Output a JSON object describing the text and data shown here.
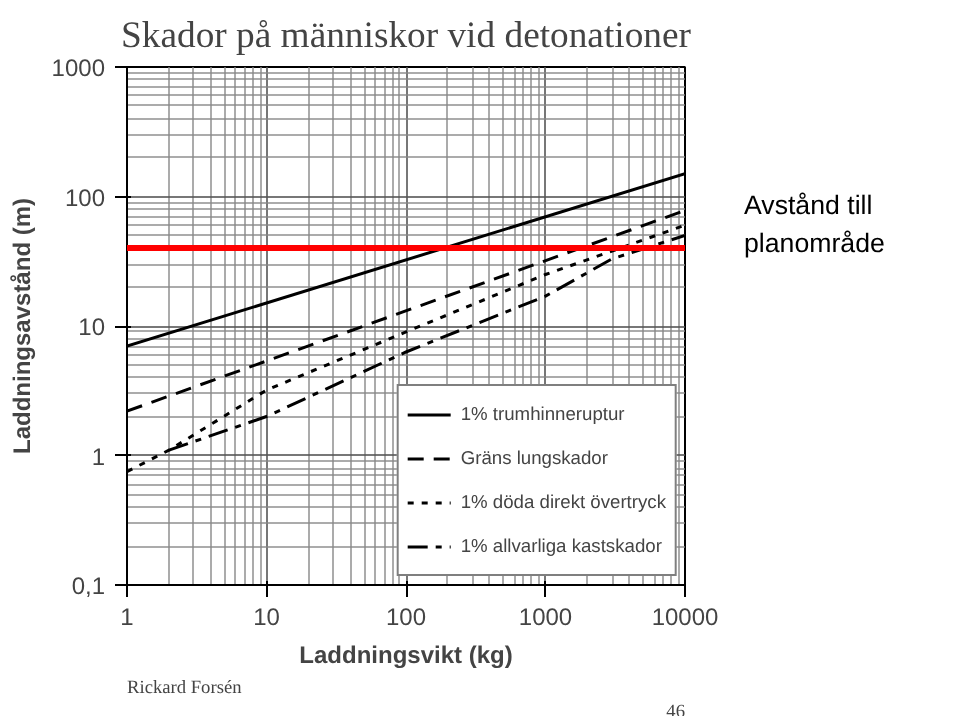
{
  "chart_data": {
    "type": "line",
    "title": "Skador på människor vid detonationer",
    "xlabel": "Laddningsvikt (kg)",
    "ylabel": "Laddningsavstånd (m)",
    "log": "xy",
    "xlim": [
      1,
      10000
    ],
    "ylim": [
      0.1,
      1000
    ],
    "xticks": [
      1,
      10,
      100,
      1000,
      10000
    ],
    "yticks": [
      {
        "value": 0.1,
        "label": "0,1"
      },
      1,
      10,
      100,
      1000
    ],
    "grid": true,
    "legend": "bottom right",
    "series": [
      {
        "name": "1% trumhinneruptur",
        "color": "#000000",
        "line_style": "solid",
        "x": [
          1,
          10000
        ],
        "values": [
          7,
          150
        ]
      },
      {
        "name": "Gräns lungskador",
        "color": "#000000",
        "line_style": "dashed",
        "x": [
          1,
          10000
        ],
        "values": [
          2.2,
          78
        ]
      },
      {
        "name": "1% döda direkt övertryck",
        "color": "#000000",
        "line_style": "dotted",
        "x": [
          1,
          2,
          10,
          100,
          1000,
          10000
        ],
        "values": [
          0.75,
          1.1,
          3.2,
          9,
          25,
          60
        ]
      },
      {
        "name": "1% allvarliga kastskador",
        "color": "#000000",
        "line_style": "dashdot",
        "x": [
          2,
          10,
          100,
          1000,
          3000,
          10000
        ],
        "values": [
          1.1,
          2.0,
          6.3,
          17,
          33,
          50
        ]
      }
    ],
    "ref_lines": [
      {
        "axis": "y",
        "value": 40,
        "label": "Avstånd till planområde",
        "color": "#ff0000"
      }
    ],
    "annotations": [
      "Rickard Forsén",
      "46"
    ]
  }
}
